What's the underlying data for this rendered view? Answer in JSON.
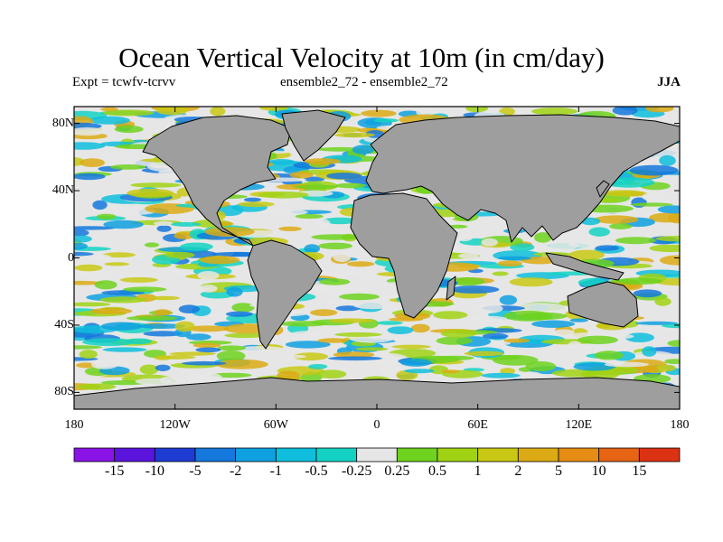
{
  "title": "Ocean Vertical Velocity at 10m (in cm/day)",
  "subtitle_left": "Expt = tcwfv-tcrvv",
  "subtitle_center": "ensemble2_72 - ensemble2_72",
  "season": "JJA",
  "map": {
    "projection": "cylindrical equidistant",
    "lon_range": [
      -180,
      180
    ],
    "lat_range": [
      -90,
      90
    ],
    "lat_ticks": [
      {
        "label": "80N",
        "value": 80
      },
      {
        "label": "40N",
        "value": 40
      },
      {
        "label": "0",
        "value": 0
      },
      {
        "label": "40S",
        "value": -40
      },
      {
        "label": "80S",
        "value": -80
      }
    ],
    "lon_ticks": [
      {
        "label": "180",
        "value": -180
      },
      {
        "label": "120W",
        "value": -120
      },
      {
        "label": "60W",
        "value": -60
      },
      {
        "label": "0",
        "value": 0
      },
      {
        "label": "60E",
        "value": 60
      },
      {
        "label": "120E",
        "value": 120
      },
      {
        "label": "180",
        "value": 180
      }
    ],
    "land_color": "#9e9e9e",
    "ocean_neutral_color": "#e6e6e6"
  },
  "colorbar": {
    "labels": [
      "-15",
      "-10",
      "-5",
      "-2",
      "-1",
      "-0.5",
      "-0.25",
      "0.25",
      "0.5",
      "1",
      "2",
      "5",
      "10",
      "15"
    ],
    "colors": [
      "#8a14e6",
      "#5a14dc",
      "#1e3cd2",
      "#1478dc",
      "#0fa0e1",
      "#0fbedc",
      "#14d2c3",
      "#e6e6e6",
      "#6ed21e",
      "#a0d214",
      "#c8c814",
      "#dcaa14",
      "#e68c14",
      "#e66414",
      "#dc3214"
    ]
  }
}
